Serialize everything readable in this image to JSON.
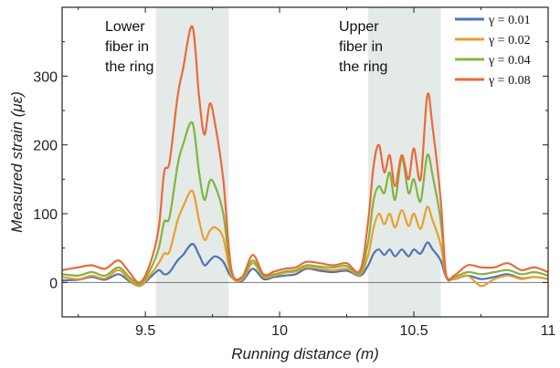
{
  "chart_data": {
    "type": "line",
    "xlabel": "Running distance (m)",
    "ylabel": "Measured strain (με)",
    "xlim": [
      9.19,
      11.0
    ],
    "ylim": [
      -50,
      400
    ],
    "x_ticks": [
      9.5,
      10,
      10.5,
      11
    ],
    "x_tick_labels": [
      "9.5",
      "10",
      "10.5",
      "11"
    ],
    "y_ticks": [
      0,
      100,
      200,
      300
    ],
    "y_tick_labels": [
      "0",
      "100",
      "200",
      "300"
    ],
    "grid": false,
    "zero_line": true,
    "legend_position": "top-right",
    "shaded_regions": [
      {
        "x0": 9.54,
        "x1": 9.81,
        "color": "#e4eae8"
      },
      {
        "x0": 10.33,
        "x1": 10.6,
        "color": "#e4eae8"
      }
    ],
    "annotations": [
      {
        "lines": [
          "Lower",
          "fiber in",
          "the ring"
        ]
      },
      {
        "lines": [
          "Upper",
          "fiber in",
          "the ring"
        ]
      }
    ],
    "x": [
      9.19,
      9.25,
      9.3,
      9.35,
      9.4,
      9.44,
      9.48,
      9.52,
      9.55,
      9.57,
      9.59,
      9.62,
      9.64,
      9.675,
      9.7,
      9.72,
      9.74,
      9.76,
      9.79,
      9.82,
      9.86,
      9.9,
      9.94,
      9.98,
      10.02,
      10.06,
      10.1,
      10.15,
      10.2,
      10.25,
      10.3,
      10.33,
      10.35,
      10.37,
      10.39,
      10.41,
      10.43,
      10.455,
      10.48,
      10.5,
      10.525,
      10.55,
      10.57,
      10.6,
      10.62,
      10.65,
      10.7,
      10.75,
      10.8,
      10.85,
      10.9,
      10.95,
      11.0
    ],
    "series": [
      {
        "name": "γ = 0.01",
        "color": "#4f73b5",
        "values": [
          3,
          4,
          8,
          4,
          12,
          2,
          -5,
          8,
          18,
          12,
          15,
          32,
          40,
          56,
          40,
          25,
          32,
          38,
          30,
          8,
          2,
          20,
          5,
          8,
          10,
          12,
          20,
          17,
          15,
          17,
          10,
          25,
          42,
          48,
          40,
          48,
          38,
          48,
          38,
          48,
          42,
          58,
          48,
          32,
          8,
          5,
          10,
          5,
          8,
          12,
          6,
          8,
          5
        ]
      },
      {
        "name": "γ = 0.02",
        "color": "#e8a030",
        "values": [
          8,
          5,
          10,
          6,
          18,
          4,
          -5,
          12,
          28,
          42,
          45,
          90,
          110,
          133,
          90,
          62,
          75,
          80,
          65,
          10,
          4,
          28,
          8,
          10,
          14,
          16,
          22,
          20,
          18,
          20,
          12,
          40,
          80,
          100,
          85,
          100,
          80,
          105,
          82,
          100,
          78,
          110,
          90,
          55,
          8,
          5,
          10,
          -5,
          5,
          10,
          5,
          8,
          5
        ]
      },
      {
        "name": "γ = 0.04",
        "color": "#82b43e",
        "values": [
          12,
          10,
          15,
          10,
          22,
          8,
          -3,
          20,
          50,
          88,
          95,
          170,
          200,
          232,
          160,
          120,
          148,
          140,
          100,
          15,
          6,
          32,
          10,
          12,
          16,
          18,
          25,
          23,
          22,
          24,
          14,
          60,
          120,
          140,
          130,
          160,
          120,
          180,
          130,
          150,
          118,
          185,
          155,
          90,
          10,
          8,
          15,
          12,
          15,
          18,
          12,
          15,
          10
        ]
      },
      {
        "name": "γ = 0.08",
        "color": "#ea6a3a",
        "values": [
          18,
          22,
          25,
          20,
          32,
          15,
          0,
          30,
          80,
          160,
          175,
          270,
          310,
          372,
          270,
          215,
          260,
          230,
          150,
          20,
          8,
          40,
          12,
          16,
          20,
          22,
          30,
          28,
          25,
          28,
          18,
          90,
          170,
          200,
          160,
          185,
          140,
          185,
          150,
          195,
          150,
          272,
          225,
          120,
          12,
          10,
          25,
          22,
          22,
          28,
          18,
          22,
          15
        ]
      }
    ]
  }
}
